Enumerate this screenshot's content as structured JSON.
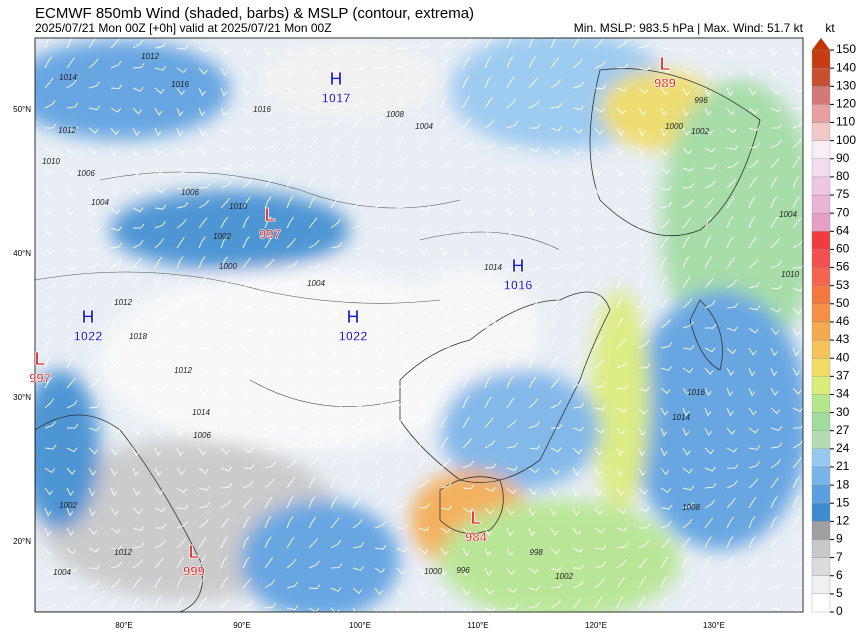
{
  "header": {
    "title": "ECMWF 850mb Wind (shaded, barbs) & MSLP (contour, extrema)",
    "subtitle": "2025/07/21 Mon 00Z [+0h] valid at 2025/07/21 Mon 00Z",
    "stats": "Min. MSLP: 983.5 hPa | Max. Wind: 51.7 kt"
  },
  "colorbar": {
    "unit": "kt",
    "ticks": [
      0,
      5,
      6,
      7,
      9,
      12,
      15,
      18,
      21,
      24,
      27,
      30,
      34,
      37,
      40,
      43,
      46,
      50,
      53,
      56,
      60,
      64,
      70,
      75,
      80,
      90,
      100,
      110,
      120,
      130,
      140,
      150
    ],
    "colors": [
      "#ffffff",
      "#f0f0f0",
      "#dcdcdc",
      "#c8c8c8",
      "#a0a0a0",
      "#3c8cd0",
      "#5a9fe0",
      "#78b4e8",
      "#96c8f0",
      "#b4dcb4",
      "#a0dca0",
      "#b4e68c",
      "#dcec78",
      "#f0dc64",
      "#f5c35a",
      "#f5aa50",
      "#f59046",
      "#f5783c",
      "#f56450",
      "#f55050",
      "#f03c3c",
      "#e6a0c8",
      "#eab4d6",
      "#eec8e2",
      "#f2dcee",
      "#f8eef8",
      "#f0c8c8",
      "#e6a0a0",
      "#d27878",
      "#c85030",
      "#c83c14"
    ],
    "extend_color": "#c83200"
  },
  "axes": {
    "lat_labels": [
      "50°N",
      "40°N",
      "30°N",
      "20°N"
    ],
    "lon_labels": [
      "80°E",
      "90°E",
      "100°E",
      "110°E",
      "120°E",
      "130°E"
    ]
  },
  "centers": [
    {
      "kind": "H",
      "value": "1017"
    },
    {
      "kind": "L",
      "value": "989"
    },
    {
      "kind": "L",
      "value": "997"
    },
    {
      "kind": "H",
      "value": "1016"
    },
    {
      "kind": "H",
      "value": "1022"
    },
    {
      "kind": "H",
      "value": "1022"
    },
    {
      "kind": "L",
      "value": "997"
    },
    {
      "kind": "L",
      "value": "984"
    },
    {
      "kind": "L",
      "value": "999"
    }
  ],
  "contour_labels": [
    "1012",
    "1014",
    "1016",
    "1012",
    "1010",
    "1006",
    "1004",
    "1016",
    "1008",
    "1004",
    "1006",
    "1010",
    "1002",
    "1000",
    "1004",
    "1014",
    "1012",
    "1018",
    "1012",
    "1014",
    "1006",
    "1002",
    "1004",
    "1000",
    "996",
    "1002",
    "1004",
    "1010",
    "1016",
    "1014",
    "1012",
    "1008",
    "998",
    "1002",
    "996",
    "1000"
  ]
}
